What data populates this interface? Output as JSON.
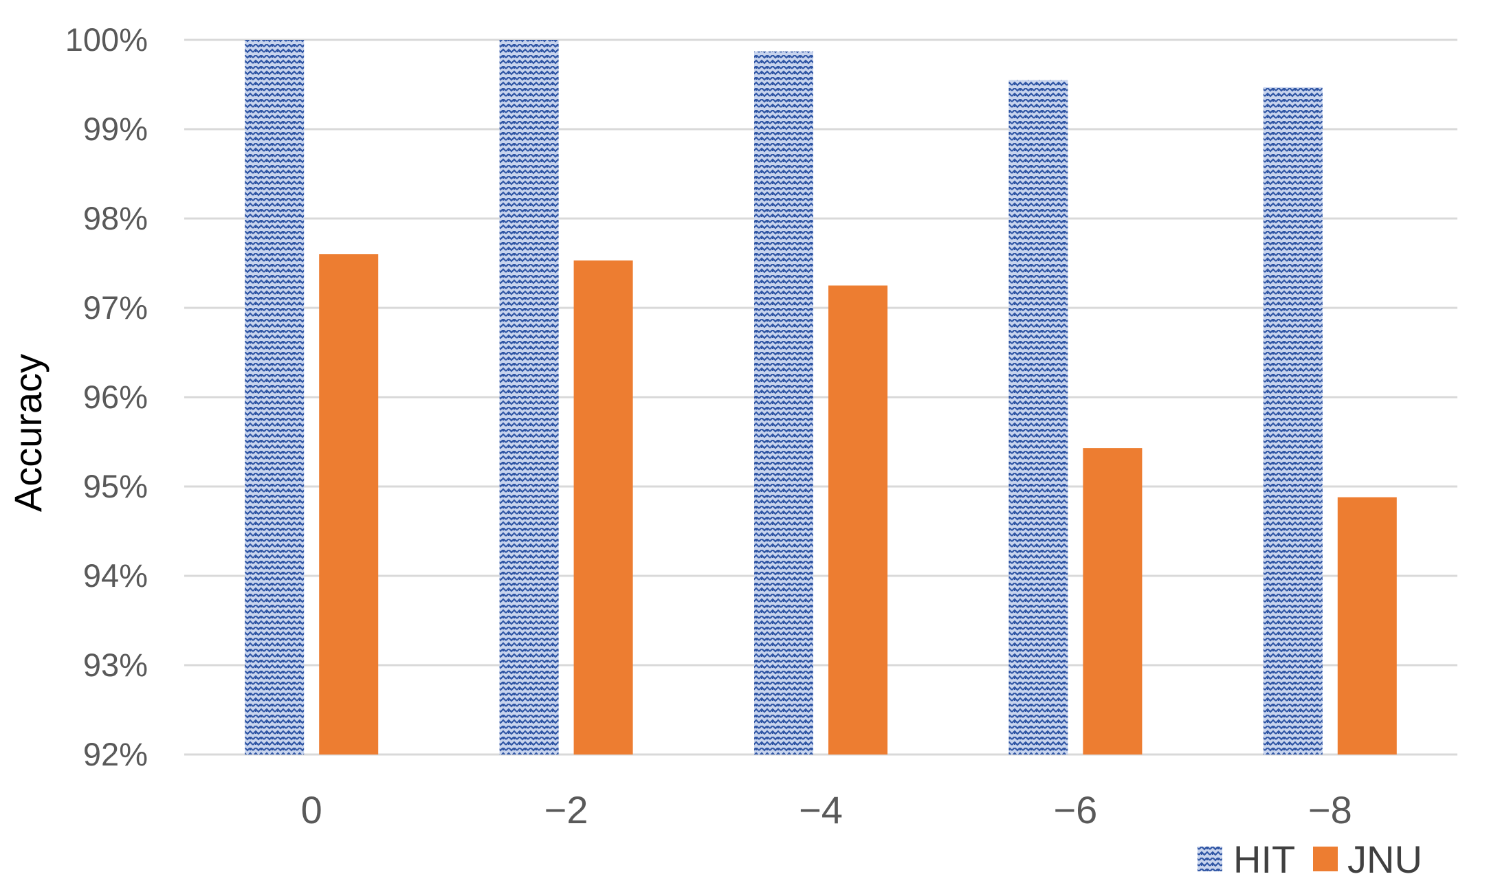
{
  "chart_data": {
    "type": "bar",
    "title": "",
    "xlabel": "",
    "ylabel": "Accuracy",
    "categories": [
      "0",
      "−2",
      "−4",
      "−6",
      "−8"
    ],
    "series": [
      {
        "name": "HIT",
        "color": "#4472C4",
        "fill": "patterned",
        "values": [
          100.0,
          100.0,
          99.87,
          99.55,
          99.47
        ]
      },
      {
        "name": "JNU",
        "color": "#ED7D31",
        "fill": "solid",
        "values": [
          97.6,
          97.53,
          97.25,
          95.43,
          94.88
        ]
      }
    ],
    "ylim": [
      92,
      100
    ],
    "yticks": [
      92,
      93,
      94,
      95,
      96,
      97,
      98,
      99,
      100
    ],
    "ytick_labels": [
      "92%",
      "93%",
      "94%",
      "95%",
      "96%",
      "97%",
      "98%",
      "99%",
      "100%"
    ],
    "grid": true,
    "legend_position": "bottom-right"
  }
}
